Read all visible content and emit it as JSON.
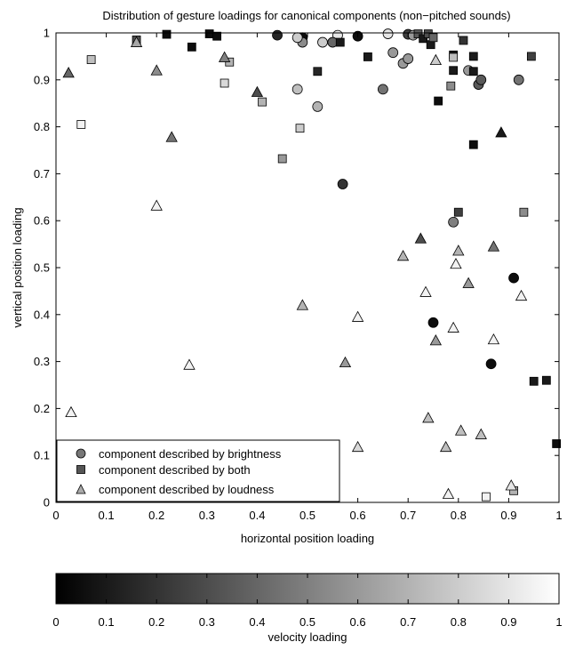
{
  "chart_data": {
    "type": "scatter",
    "title": "Distribution of gesture loadings for canonical components (non−pitched sounds)",
    "xlabel": "horizontal position loading",
    "ylabel": "vertical position loading",
    "xlim": [
      0,
      1
    ],
    "ylim": [
      0,
      1
    ],
    "xticks": [
      "0",
      "0.1",
      "0.2",
      "0.3",
      "0.4",
      "0.5",
      "0.6",
      "0.7",
      "0.8",
      "0.9",
      "1"
    ],
    "yticks": [
      "0",
      "0.1",
      "0.2",
      "0.3",
      "0.4",
      "0.5",
      "0.6",
      "0.7",
      "0.8",
      "0.9",
      "1"
    ],
    "grid": false,
    "legend_position": "bottom-left",
    "series": [
      {
        "name": "component described by brightness",
        "marker": "circle",
        "points": [
          {
            "x": 0.44,
            "y": 0.995,
            "v": 0.15
          },
          {
            "x": 0.49,
            "y": 0.99,
            "v": 0.05
          },
          {
            "x": 0.6,
            "y": 0.993,
            "v": 0.05
          },
          {
            "x": 0.66,
            "y": 0.998,
            "v": 0.9
          },
          {
            "x": 0.7,
            "y": 0.997,
            "v": 0.25
          },
          {
            "x": 0.71,
            "y": 0.995,
            "v": 0.6
          },
          {
            "x": 0.56,
            "y": 0.995,
            "v": 0.9
          },
          {
            "x": 0.55,
            "y": 0.98,
            "v": 0.4
          },
          {
            "x": 0.49,
            "y": 0.98,
            "v": 0.55
          },
          {
            "x": 0.48,
            "y": 0.99,
            "v": 0.8
          },
          {
            "x": 0.53,
            "y": 0.98,
            "v": 0.8
          },
          {
            "x": 0.67,
            "y": 0.958,
            "v": 0.6
          },
          {
            "x": 0.69,
            "y": 0.935,
            "v": 0.6
          },
          {
            "x": 0.7,
            "y": 0.945,
            "v": 0.6
          },
          {
            "x": 0.82,
            "y": 0.92,
            "v": 0.6
          },
          {
            "x": 0.84,
            "y": 0.89,
            "v": 0.35
          },
          {
            "x": 0.845,
            "y": 0.9,
            "v": 0.35
          },
          {
            "x": 0.92,
            "y": 0.9,
            "v": 0.45
          },
          {
            "x": 0.65,
            "y": 0.88,
            "v": 0.45
          },
          {
            "x": 0.48,
            "y": 0.88,
            "v": 0.75
          },
          {
            "x": 0.52,
            "y": 0.843,
            "v": 0.7
          },
          {
            "x": 0.57,
            "y": 0.678,
            "v": 0.2
          },
          {
            "x": 0.79,
            "y": 0.597,
            "v": 0.5
          },
          {
            "x": 0.91,
            "y": 0.478,
            "v": 0.05
          },
          {
            "x": 0.75,
            "y": 0.383,
            "v": 0.05
          },
          {
            "x": 0.865,
            "y": 0.295,
            "v": 0.05
          }
        ]
      },
      {
        "name": "component described by both",
        "marker": "square",
        "points": [
          {
            "x": 0.22,
            "y": 0.997,
            "v": 0.05
          },
          {
            "x": 0.305,
            "y": 0.998,
            "v": 0.05
          },
          {
            "x": 0.32,
            "y": 0.993,
            "v": 0.05
          },
          {
            "x": 0.16,
            "y": 0.985,
            "v": 0.3
          },
          {
            "x": 0.27,
            "y": 0.97,
            "v": 0.05
          },
          {
            "x": 0.07,
            "y": 0.943,
            "v": 0.75
          },
          {
            "x": 0.335,
            "y": 0.893,
            "v": 0.85
          },
          {
            "x": 0.345,
            "y": 0.938,
            "v": 0.7
          },
          {
            "x": 0.41,
            "y": 0.853,
            "v": 0.7
          },
          {
            "x": 0.45,
            "y": 0.732,
            "v": 0.6
          },
          {
            "x": 0.485,
            "y": 0.797,
            "v": 0.8
          },
          {
            "x": 0.05,
            "y": 0.805,
            "v": 0.95
          },
          {
            "x": 0.52,
            "y": 0.918,
            "v": 0.15
          },
          {
            "x": 0.565,
            "y": 0.98,
            "v": 0.1
          },
          {
            "x": 0.62,
            "y": 0.949,
            "v": 0.1
          },
          {
            "x": 0.72,
            "y": 0.998,
            "v": 0.35
          },
          {
            "x": 0.73,
            "y": 0.988,
            "v": 0.1
          },
          {
            "x": 0.74,
            "y": 0.998,
            "v": 0.3
          },
          {
            "x": 0.745,
            "y": 0.975,
            "v": 0.1
          },
          {
            "x": 0.75,
            "y": 0.99,
            "v": 0.4
          },
          {
            "x": 0.76,
            "y": 0.855,
            "v": 0.05
          },
          {
            "x": 0.79,
            "y": 0.953,
            "v": 0.1
          },
          {
            "x": 0.79,
            "y": 0.92,
            "v": 0.1
          },
          {
            "x": 0.79,
            "y": 0.948,
            "v": 0.75
          },
          {
            "x": 0.785,
            "y": 0.887,
            "v": 0.55
          },
          {
            "x": 0.81,
            "y": 0.984,
            "v": 0.2
          },
          {
            "x": 0.83,
            "y": 0.95,
            "v": 0.1
          },
          {
            "x": 0.83,
            "y": 0.918,
            "v": 0.1
          },
          {
            "x": 0.83,
            "y": 0.762,
            "v": 0.05
          },
          {
            "x": 0.945,
            "y": 0.95,
            "v": 0.25
          },
          {
            "x": 0.8,
            "y": 0.618,
            "v": 0.25
          },
          {
            "x": 0.93,
            "y": 0.618,
            "v": 0.55
          },
          {
            "x": 0.95,
            "y": 0.258,
            "v": 0.1
          },
          {
            "x": 0.975,
            "y": 0.26,
            "v": 0.1
          },
          {
            "x": 0.995,
            "y": 0.125,
            "v": 0.05
          },
          {
            "x": 0.855,
            "y": 0.012,
            "v": 0.95
          },
          {
            "x": 0.91,
            "y": 0.025,
            "v": 0.7
          }
        ]
      },
      {
        "name": "component described by loudness",
        "marker": "triangle",
        "points": [
          {
            "x": 0.025,
            "y": 0.915,
            "v": 0.4
          },
          {
            "x": 0.16,
            "y": 0.98,
            "v": 0.65
          },
          {
            "x": 0.2,
            "y": 0.92,
            "v": 0.55
          },
          {
            "x": 0.335,
            "y": 0.948,
            "v": 0.5
          },
          {
            "x": 0.4,
            "y": 0.874,
            "v": 0.3
          },
          {
            "x": 0.23,
            "y": 0.778,
            "v": 0.45
          },
          {
            "x": 0.2,
            "y": 0.632,
            "v": 0.95
          },
          {
            "x": 0.265,
            "y": 0.293,
            "v": 0.95
          },
          {
            "x": 0.03,
            "y": 0.192,
            "v": 0.95
          },
          {
            "x": 0.49,
            "y": 0.42,
            "v": 0.7
          },
          {
            "x": 0.575,
            "y": 0.298,
            "v": 0.6
          },
          {
            "x": 0.6,
            "y": 0.395,
            "v": 0.95
          },
          {
            "x": 0.6,
            "y": 0.118,
            "v": 0.85
          },
          {
            "x": 0.69,
            "y": 0.525,
            "v": 0.7
          },
          {
            "x": 0.725,
            "y": 0.562,
            "v": 0.3
          },
          {
            "x": 0.735,
            "y": 0.448,
            "v": 0.95
          },
          {
            "x": 0.755,
            "y": 0.345,
            "v": 0.6
          },
          {
            "x": 0.74,
            "y": 0.18,
            "v": 0.75
          },
          {
            "x": 0.755,
            "y": 0.942,
            "v": 0.8
          },
          {
            "x": 0.79,
            "y": 0.372,
            "v": 0.95
          },
          {
            "x": 0.795,
            "y": 0.508,
            "v": 0.95
          },
          {
            "x": 0.8,
            "y": 0.536,
            "v": 0.7
          },
          {
            "x": 0.82,
            "y": 0.467,
            "v": 0.6
          },
          {
            "x": 0.775,
            "y": 0.118,
            "v": 0.75
          },
          {
            "x": 0.78,
            "y": 0.018,
            "v": 0.95
          },
          {
            "x": 0.805,
            "y": 0.153,
            "v": 0.75
          },
          {
            "x": 0.845,
            "y": 0.145,
            "v": 0.75
          },
          {
            "x": 0.87,
            "y": 0.545,
            "v": 0.45
          },
          {
            "x": 0.87,
            "y": 0.347,
            "v": 0.95
          },
          {
            "x": 0.885,
            "y": 0.788,
            "v": 0.1
          },
          {
            "x": 0.905,
            "y": 0.036,
            "v": 0.9
          },
          {
            "x": 0.925,
            "y": 0.44,
            "v": 0.95
          }
        ]
      }
    ],
    "colorbar": {
      "label": "velocity loading",
      "range": [
        0,
        1
      ],
      "ticks": [
        "0",
        "0.1",
        "0.2",
        "0.3",
        "0.4",
        "0.5",
        "0.6",
        "0.7",
        "0.8",
        "0.9",
        "1"
      ],
      "colormap": "gray"
    }
  }
}
